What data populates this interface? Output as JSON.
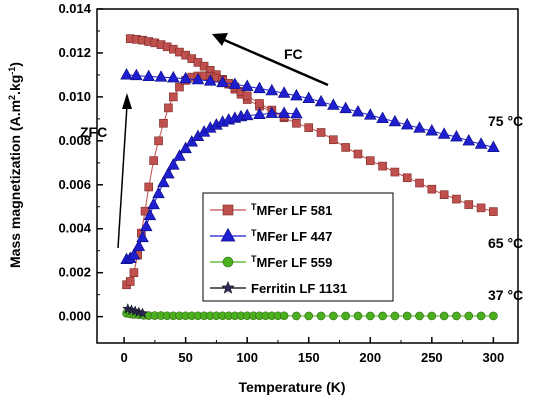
{
  "chart_data": {
    "type": "scatter",
    "xlabel": "Temperature (K)",
    "ylabel": "Mass magnetization (A.m².kg⁻¹)",
    "xlim": [
      -22,
      320
    ],
    "ylim": [
      -0.0012,
      0.014
    ],
    "xticks": [
      "0",
      "50",
      "100",
      "150",
      "200",
      "250",
      "300"
    ],
    "yticks": [
      "0.000",
      "0.002",
      "0.004",
      "0.006",
      "0.008",
      "0.010",
      "0.012",
      "0.014"
    ],
    "annotations": {
      "fc": "FC",
      "zfc": "ZFC",
      "t75": "75 °C",
      "t65": "65 °C",
      "t37": "37 °C"
    },
    "series": [
      {
        "name": "TMFer LF 581",
        "sup": "T",
        "label": "MFer LF 581",
        "color": "#c0504d",
        "marker": "square",
        "fc": [
          [
            5,
            0.01265
          ],
          [
            10,
            0.01262
          ],
          [
            15,
            0.01258
          ],
          [
            20,
            0.01252
          ],
          [
            25,
            0.01246
          ],
          [
            30,
            0.01238
          ],
          [
            35,
            0.01228
          ],
          [
            40,
            0.01217
          ],
          [
            45,
            0.01204
          ],
          [
            50,
            0.0119
          ],
          [
            55,
            0.01174
          ],
          [
            60,
            0.01157
          ],
          [
            65,
            0.0114
          ],
          [
            70,
            0.01121
          ],
          [
            75,
            0.01101
          ],
          [
            80,
            0.0108
          ],
          [
            85,
            0.01058
          ],
          [
            90,
            0.01035
          ],
          [
            95,
            0.01012
          ],
          [
            100,
            0.00988
          ],
          [
            110,
            0.00958
          ],
          [
            120,
            0.00933
          ],
          [
            130,
            0.00905
          ],
          [
            140,
            0.0088
          ],
          [
            150,
            0.0086
          ],
          [
            160,
            0.00838
          ],
          [
            170,
            0.00805
          ],
          [
            180,
            0.0077
          ],
          [
            190,
            0.0074
          ],
          [
            200,
            0.0071
          ],
          [
            210,
            0.00685
          ],
          [
            220,
            0.00658
          ],
          [
            230,
            0.00632
          ],
          [
            240,
            0.00608
          ],
          [
            250,
            0.0058
          ],
          [
            260,
            0.00555
          ],
          [
            270,
            0.00535
          ],
          [
            280,
            0.0051
          ],
          [
            290,
            0.00495
          ],
          [
            300,
            0.00478
          ]
        ],
        "zfc": [
          [
            2,
            0.00145
          ],
          [
            5,
            0.0016
          ],
          [
            8,
            0.002
          ],
          [
            11,
            0.0028
          ],
          [
            14,
            0.0038
          ],
          [
            17,
            0.0048
          ],
          [
            20,
            0.0059
          ],
          [
            24,
            0.0071
          ],
          [
            28,
            0.008
          ],
          [
            32,
            0.0088
          ],
          [
            36,
            0.0095
          ],
          [
            40,
            0.01
          ],
          [
            45,
            0.01045
          ],
          [
            50,
            0.01075
          ],
          [
            55,
            0.0109
          ],
          [
            60,
            0.01095
          ],
          [
            65,
            0.01096
          ],
          [
            70,
            0.01092
          ],
          [
            75,
            0.01085
          ],
          [
            80,
            0.01075
          ],
          [
            85,
            0.01062
          ],
          [
            90,
            0.01045
          ],
          [
            95,
            0.01025
          ],
          [
            100,
            0.01005
          ],
          [
            110,
            0.0097
          ],
          [
            120,
            0.0094
          ],
          [
            130,
            0.0091
          ]
        ]
      },
      {
        "name": "TMFer LF 447",
        "sup": "T",
        "label": "MFer LF 447",
        "color": "#1f1fd0",
        "marker": "triangle",
        "fc": [
          [
            2,
            0.011
          ],
          [
            10,
            0.01097
          ],
          [
            20,
            0.01093
          ],
          [
            30,
            0.0109
          ],
          [
            40,
            0.01087
          ],
          [
            50,
            0.01083
          ],
          [
            60,
            0.01078
          ],
          [
            70,
            0.01072
          ],
          [
            80,
            0.01065
          ],
          [
            90,
            0.01057
          ],
          [
            100,
            0.01048
          ],
          [
            110,
            0.01038
          ],
          [
            120,
            0.01028
          ],
          [
            130,
            0.01017
          ],
          [
            140,
            0.01005
          ],
          [
            150,
            0.00993
          ],
          [
            160,
            0.00978
          ],
          [
            170,
            0.00962
          ],
          [
            180,
            0.00947
          ],
          [
            190,
            0.00932
          ],
          [
            200,
            0.00917
          ],
          [
            210,
            0.00902
          ],
          [
            220,
            0.00887
          ],
          [
            230,
            0.00873
          ],
          [
            240,
            0.00858
          ],
          [
            250,
            0.00845
          ],
          [
            260,
            0.0083
          ],
          [
            270,
            0.00818
          ],
          [
            280,
            0.008
          ],
          [
            290,
            0.00785
          ],
          [
            300,
            0.0077
          ]
        ],
        "zfc": [
          [
            2,
            0.0026
          ],
          [
            5,
            0.00265
          ],
          [
            8,
            0.0028
          ],
          [
            12,
            0.0032
          ],
          [
            15,
            0.0036
          ],
          [
            18,
            0.0041
          ],
          [
            21,
            0.0046
          ],
          [
            24,
            0.0051
          ],
          [
            28,
            0.0056
          ],
          [
            32,
            0.0061
          ],
          [
            36,
            0.0065
          ],
          [
            40,
            0.0069
          ],
          [
            45,
            0.0073
          ],
          [
            50,
            0.00765
          ],
          [
            55,
            0.00795
          ],
          [
            60,
            0.0082
          ],
          [
            65,
            0.0084
          ],
          [
            70,
            0.00858
          ],
          [
            75,
            0.00872
          ],
          [
            80,
            0.00885
          ],
          [
            85,
            0.00895
          ],
          [
            90,
            0.00903
          ],
          [
            95,
            0.0091
          ],
          [
            100,
            0.00915
          ],
          [
            110,
            0.0092
          ],
          [
            120,
            0.00925
          ],
          [
            130,
            0.00925
          ],
          [
            140,
            0.00923
          ]
        ]
      },
      {
        "name": "TMFer LF 559",
        "sup": "T",
        "label": "MFer LF 559",
        "color": "#4caf1f",
        "marker": "circle",
        "points": [
          [
            2,
            0.00015
          ],
          [
            5,
            0.00012
          ],
          [
            8,
            0.0001
          ],
          [
            12,
            8e-05
          ],
          [
            16,
            6e-05
          ],
          [
            20,
            5e-05
          ],
          [
            25,
            5e-05
          ],
          [
            30,
            5e-05
          ],
          [
            35,
            4e-05
          ],
          [
            40,
            4e-05
          ],
          [
            45,
            4e-05
          ],
          [
            50,
            4e-05
          ],
          [
            55,
            4e-05
          ],
          [
            60,
            4e-05
          ],
          [
            65,
            4e-05
          ],
          [
            70,
            4e-05
          ],
          [
            75,
            4e-05
          ],
          [
            80,
            4e-05
          ],
          [
            85,
            4e-05
          ],
          [
            90,
            4e-05
          ],
          [
            95,
            4e-05
          ],
          [
            100,
            4e-05
          ],
          [
            105,
            4e-05
          ],
          [
            110,
            4e-05
          ],
          [
            115,
            4e-05
          ],
          [
            120,
            4e-05
          ],
          [
            125,
            4e-05
          ],
          [
            130,
            4e-05
          ],
          [
            140,
            3e-05
          ],
          [
            150,
            3e-05
          ],
          [
            160,
            3e-05
          ],
          [
            170,
            3e-05
          ],
          [
            180,
            3e-05
          ],
          [
            190,
            3e-05
          ],
          [
            200,
            3e-05
          ],
          [
            210,
            3e-05
          ],
          [
            220,
            3e-05
          ],
          [
            230,
            3e-05
          ],
          [
            240,
            3e-05
          ],
          [
            250,
            3e-05
          ],
          [
            260,
            3e-05
          ],
          [
            270,
            3e-05
          ],
          [
            280,
            3e-05
          ],
          [
            290,
            3e-05
          ],
          [
            300,
            3e-05
          ]
        ]
      },
      {
        "name": "Ferritin LF 1131",
        "sup": "",
        "label": "Ferritin LF 1131",
        "color": "#2a2a55",
        "marker": "star",
        "points": [
          [
            3,
            0.00035
          ],
          [
            6,
            0.0003
          ],
          [
            9,
            0.00025
          ],
          [
            12,
            0.0002
          ],
          [
            15,
            0.00015
          ]
        ]
      }
    ]
  }
}
